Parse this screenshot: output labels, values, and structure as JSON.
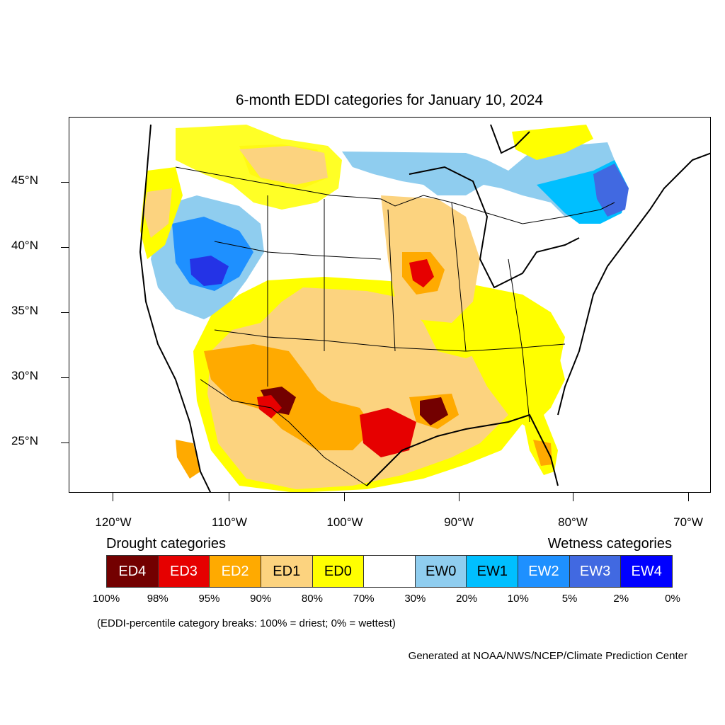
{
  "title": "6-month EDDI categories for January 10, 2024",
  "lat_labels": [
    "45°N",
    "40°N",
    "35°N",
    "30°N",
    "25°N"
  ],
  "lon_labels": [
    "120°W",
    "110°W",
    "100°W",
    "90°W",
    "80°W",
    "70°W"
  ],
  "legend": {
    "drought_heading": "Drought categories",
    "wetness_heading": "Wetness categories",
    "categories": [
      {
        "label": "ED4",
        "color": "#730000",
        "text_color": "#ffffff"
      },
      {
        "label": "ED3",
        "color": "#e60000",
        "text_color": "#ffffff"
      },
      {
        "label": "ED2",
        "color": "#ffaa00",
        "text_color": "#ffffff"
      },
      {
        "label": "ED1",
        "color": "#fcd37f",
        "text_color": "#000000"
      },
      {
        "label": "ED0",
        "color": "#ffff00",
        "text_color": "#000000"
      },
      {
        "label": "",
        "color": "#ffffff",
        "text_color": "#000000"
      },
      {
        "label": "EW0",
        "color": "#8fcdef",
        "text_color": "#000000"
      },
      {
        "label": "EW1",
        "color": "#00bfff",
        "text_color": "#000000"
      },
      {
        "label": "EW2",
        "color": "#1e90ff",
        "text_color": "#ffffff"
      },
      {
        "label": "EW3",
        "color": "#4169e1",
        "text_color": "#ffffff"
      },
      {
        "label": "EW4",
        "color": "#0000ff",
        "text_color": "#ffffff"
      }
    ],
    "percentiles": [
      "100%",
      "98%",
      "95%",
      "90%",
      "80%",
      "70%",
      "30%",
      "20%",
      "10%",
      "5%",
      "2%",
      "0%"
    ]
  },
  "note": "(EDDI-percentile category breaks: 100% = driest; 0% = wettest)",
  "credit": "Generated at NOAA/NWS/NCEP/Climate Prediction Center"
}
